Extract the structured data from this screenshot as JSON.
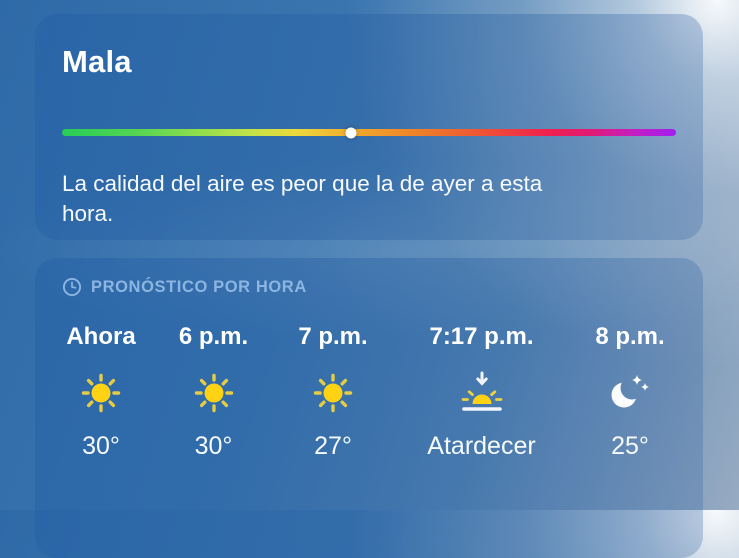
{
  "air_quality_card": {
    "title": "Mala",
    "description": "La calidad del aire es peor que la de ayer a esta hora.",
    "scale": {
      "indicator_position_pct": 47,
      "gradient_left_color": "#27cd58",
      "gradient_right_color": "#a21ef0"
    }
  },
  "hourly_forecast_card": {
    "header": {
      "icon": "clock-icon",
      "label": "PRONÓSTICO POR HORA"
    },
    "hours": [
      {
        "time": "Ahora",
        "icon": "sun-icon",
        "value": "30°"
      },
      {
        "time": "6 p.m.",
        "icon": "sun-icon",
        "value": "30°"
      },
      {
        "time": "7 p.m.",
        "icon": "sun-icon",
        "value": "27°"
      },
      {
        "time": "7:17 p.m.",
        "icon": "sunset-icon",
        "value": "Atardecer"
      },
      {
        "time": "8 p.m.",
        "icon": "moon-stars-icon",
        "value": "25°"
      }
    ]
  },
  "colors": {
    "header_tint": "#8cb6e1",
    "sun_yellow": "#ffd60a",
    "text_white": "#ffffff",
    "background_blue": "#3b76b0"
  }
}
